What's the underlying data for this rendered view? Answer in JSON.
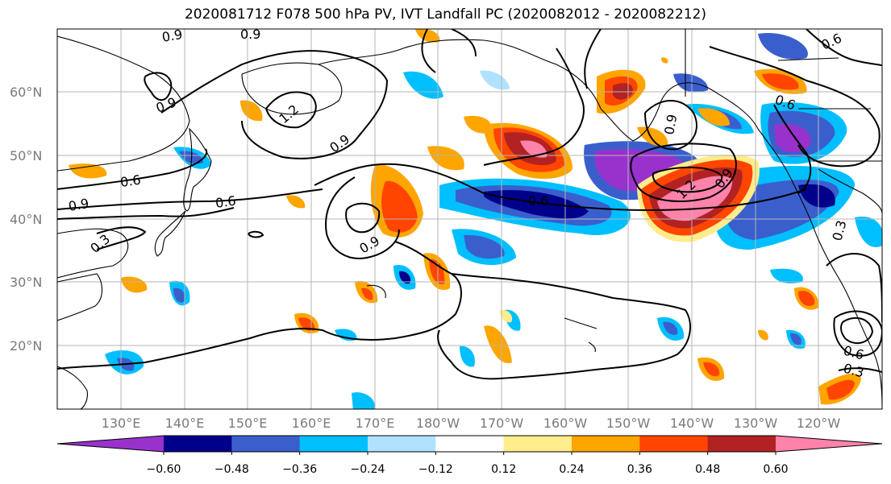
{
  "figure": {
    "title": "2020081712 F078 500 hPa PV, IVT Landfall PC (2020082012 - 2020082212)"
  },
  "map": {
    "lat_labels": [
      "60°N",
      "50°N",
      "40°N",
      "30°N",
      "20°N"
    ],
    "lon_labels": [
      "130°E",
      "140°E",
      "150°E",
      "160°E",
      "170°E",
      "180°W",
      "170°W",
      "160°W",
      "150°W",
      "140°W",
      "130°W",
      "120°W"
    ],
    "contour_labels": [
      "0.9",
      "0.9",
      "0.9",
      "1.2",
      "0.9",
      "0.6",
      "0.9",
      "0.6",
      "0.3",
      "0.9",
      "0.6",
      "1.2",
      "0.9",
      "0.9",
      "0.6",
      "0.3",
      "0.6",
      "0.3"
    ]
  },
  "colorbar": {
    "tick_labels": [
      "−0.60",
      "−0.48",
      "−0.36",
      "−0.24",
      "−0.12",
      "0.12",
      "0.24",
      "0.36",
      "0.48",
      "0.60"
    ],
    "colors": [
      "#9932cc",
      "#00008b",
      "#3a5fcd",
      "#00bfff",
      "#b0e2ff",
      "#ffffff",
      "#ffec8b",
      "#ffa500",
      "#ff4500",
      "#b22222",
      "#ff82ab"
    ]
  }
}
